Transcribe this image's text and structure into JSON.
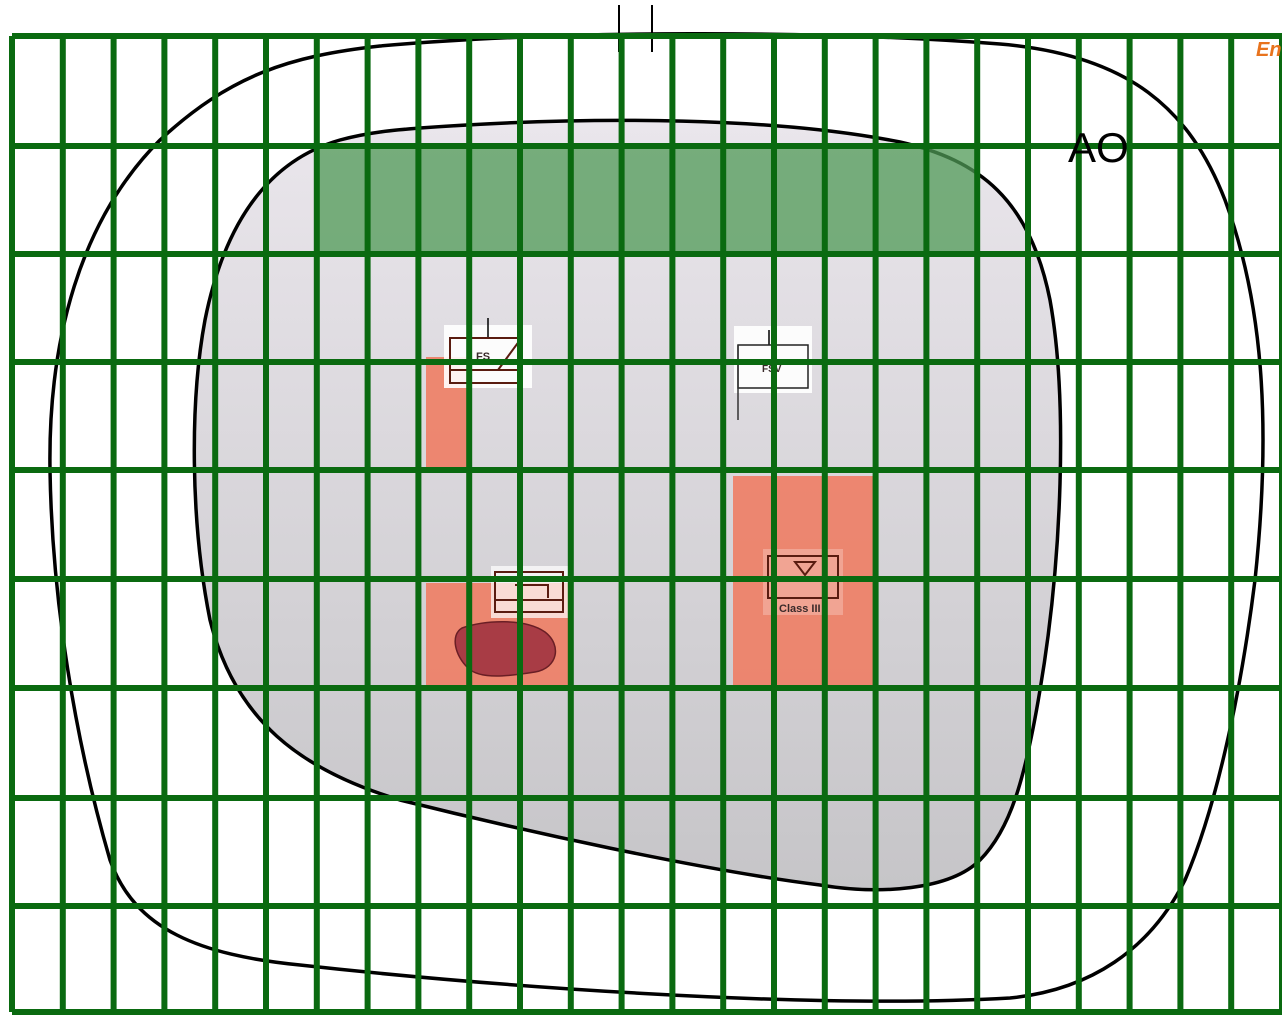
{
  "map": {
    "area_label": "AO",
    "corner_label": "En",
    "units": [
      {
        "id": "fs",
        "text": "FS"
      },
      {
        "id": "fsv",
        "text": "FSV"
      },
      {
        "id": "class-iii",
        "text": "Class III"
      },
      {
        "id": "support",
        "text": ""
      }
    ],
    "colors": {
      "grid": "#0a6a10",
      "outer_boundary": "#000000",
      "inner_area_top": "#e9e5ea",
      "inner_area_bottom": "#c7c6c9",
      "green_band": "#4f9a55",
      "zone_fill": "#ee7d64",
      "blob_fill": "#a83c45",
      "corner_label": "#e8731d"
    }
  }
}
